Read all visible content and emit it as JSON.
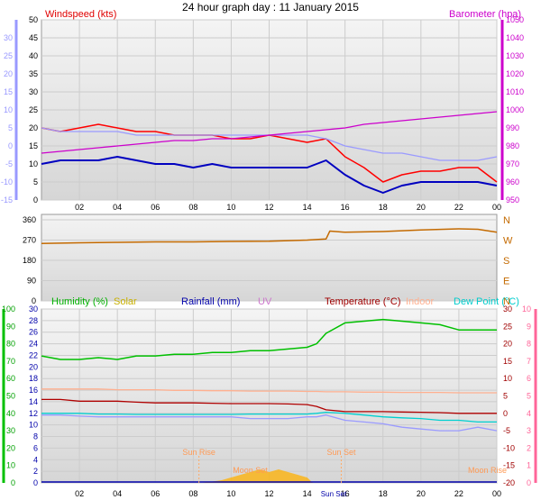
{
  "title": "24 hour graph day : 11 January 2015",
  "colors": {
    "windspeed": "#ff0000",
    "windavg": "#0000c0",
    "temp_feel": "#9a9aff",
    "barometer": "#cc00cc",
    "direction": "#c46a00",
    "humidity": "#00c000",
    "solar": "#ffb000",
    "rainfall": "#0000aa",
    "uv": "#cc77cc",
    "temperature": "#b00000",
    "indoor": "#ffb090",
    "dewpoint": "#00d0d0",
    "axis_left_top": "#9999ff",
    "axis_right_top": "#cc00cc",
    "axis_left_bottom": "#00c000",
    "axis_right_bottom": "#ff6699"
  },
  "chart_data": [
    {
      "type": "line",
      "panel": "wind-barometer",
      "labels": {
        "left": "Windspeed (kts)",
        "right": "Barometer (hpa)"
      },
      "x_ticks": [
        "02",
        "04",
        "06",
        "08",
        "10",
        "12",
        "14",
        "16",
        "18",
        "20",
        "22",
        "00"
      ],
      "y_ticks_wind": [
        "0",
        "5",
        "10",
        "15",
        "20",
        "25",
        "30",
        "35",
        "40",
        "45",
        "50"
      ],
      "y_ticks_temp_left": [
        "-15",
        "-10",
        "-5",
        "0",
        "5",
        "10",
        "15",
        "20",
        "25",
        "30"
      ],
      "y_ticks_baro": [
        "950",
        "960",
        "970",
        "980",
        "990",
        "1000",
        "1010",
        "1020",
        "1030",
        "1040",
        "1050"
      ],
      "ylim_wind": [
        0,
        50
      ],
      "ylim_baro": [
        950,
        1050
      ],
      "x_hours": [
        0,
        1,
        2,
        3,
        4,
        5,
        6,
        7,
        8,
        9,
        10,
        11,
        12,
        13,
        14,
        15,
        16,
        17,
        18,
        19,
        20,
        21,
        22,
        23,
        24
      ],
      "series": [
        {
          "key": "windspeed",
          "values": [
            20,
            19,
            20,
            21,
            20,
            19,
            19,
            18,
            18,
            18,
            17,
            17,
            18,
            17,
            16,
            17,
            12,
            9,
            5,
            7,
            8,
            8,
            9,
            9,
            5
          ]
        },
        {
          "key": "windavg",
          "values": [
            10,
            11,
            11,
            11,
            12,
            11,
            10,
            10,
            9,
            10,
            9,
            9,
            9,
            9,
            9,
            11,
            7,
            4,
            2,
            4,
            5,
            5,
            5,
            5,
            4
          ]
        },
        {
          "key": "temp_feel",
          "values": [
            5,
            4,
            4,
            4,
            4,
            3,
            3,
            3,
            3,
            3,
            3,
            3,
            3,
            3,
            3,
            2,
            0,
            -1,
            -2,
            -2,
            -3,
            -4,
            -4,
            -4,
            -3
          ]
        },
        {
          "key": "barometer",
          "values": [
            976,
            977,
            978,
            979,
            980,
            981,
            982,
            983,
            983,
            984,
            984,
            985,
            986,
            987,
            988,
            989,
            990,
            992,
            993,
            994,
            995,
            996,
            997,
            998,
            999
          ]
        }
      ]
    },
    {
      "type": "line",
      "panel": "wind-direction",
      "y_ticks": [
        "0",
        "90",
        "180",
        "270",
        "360"
      ],
      "dir_labels": [
        "N",
        "W",
        "S",
        "E",
        "N"
      ],
      "ylim": [
        0,
        360
      ],
      "x_hours": [
        0,
        2,
        4,
        6,
        8,
        10,
        12,
        14,
        15,
        15.2,
        16,
        18,
        20,
        22,
        23,
        24
      ],
      "series": [
        {
          "key": "direction",
          "values": [
            255,
            258,
            260,
            262,
            262,
            264,
            265,
            270,
            275,
            310,
            305,
            308,
            315,
            320,
            318,
            305
          ]
        }
      ]
    },
    {
      "type": "line",
      "panel": "humidity-temperature",
      "labels": {
        "humidity": "Humidity (%)",
        "solar": "Solar",
        "rainfall": "Rainfall (mm)",
        "uv": "UV",
        "temperature": "Temperature (°C)",
        "indoor": "Indoor",
        "dewpoint": "Dew Point (°C)"
      },
      "annotations": {
        "sunrise": "Sun Rise",
        "sunset": "Sun Set",
        "moonset": "Moon Set",
        "moonrise": "Moon Rise",
        "sun_label": "Sun Set"
      },
      "y_ticks_humidity": [
        "0",
        "10",
        "20",
        "30",
        "40",
        "50",
        "60",
        "70",
        "80",
        "90",
        "100"
      ],
      "y_ticks_rain": [
        "0",
        "2",
        "4",
        "6",
        "8",
        "10",
        "12",
        "14",
        "16",
        "18",
        "20",
        "22",
        "24",
        "26",
        "28",
        "30"
      ],
      "y_ticks_temp": [
        "-20",
        "-15",
        "-10",
        "-5",
        "0",
        "5",
        "10",
        "15",
        "20",
        "25",
        "30"
      ],
      "y_ticks_uv": [
        "0",
        "1",
        "2",
        "3",
        "4",
        "5",
        "6",
        "7",
        "8",
        "9",
        "10"
      ],
      "ylim_humidity": [
        0,
        100
      ],
      "ylim_temp": [
        -20,
        30
      ],
      "x_hours": [
        0,
        1,
        2,
        3,
        4,
        5,
        6,
        7,
        8,
        9,
        10,
        11,
        12,
        13,
        14,
        14.5,
        15,
        16,
        17,
        18,
        19,
        20,
        21,
        22,
        23,
        24
      ],
      "series": [
        {
          "key": "humidity",
          "values": [
            73,
            71,
            71,
            72,
            71,
            73,
            73,
            74,
            74,
            75,
            75,
            76,
            76,
            77,
            78,
            80,
            86,
            92,
            93,
            94,
            93,
            92,
            91,
            88,
            88,
            88
          ]
        },
        {
          "key": "temperature",
          "values": [
            4,
            4,
            3.5,
            3.5,
            3.5,
            3.2,
            3,
            3,
            3,
            2.9,
            2.8,
            2.8,
            2.8,
            2.7,
            2.5,
            2,
            1,
            0.5,
            0.5,
            0.5,
            0.4,
            0.3,
            0.2,
            0,
            0,
            0
          ]
        },
        {
          "key": "dewpoint",
          "values": [
            0,
            0,
            0,
            -0.2,
            -0.2,
            -0.3,
            -0.3,
            -0.3,
            -0.3,
            -0.3,
            -0.3,
            -0.2,
            -0.2,
            -0.2,
            -0.2,
            0,
            0.3,
            0,
            -0.5,
            -1,
            -1.3,
            -1.5,
            -2,
            -2,
            -2.5,
            -2.5
          ]
        },
        {
          "key": "indoor",
          "values": [
            7,
            7,
            7,
            7,
            6.8,
            6.8,
            6.8,
            6.6,
            6.6,
            6.5,
            6.5,
            6.4,
            6.4,
            6.4,
            6.3,
            6.3,
            6.2,
            6.2,
            6.1,
            6.1,
            6,
            6,
            6,
            5.9,
            5.9,
            5.9
          ]
        },
        {
          "key": "temp_feel",
          "values": [
            -0.5,
            -0.5,
            -0.8,
            -1,
            -1,
            -1,
            -1,
            -1,
            -1,
            -1,
            -1,
            -1.5,
            -1.5,
            -1.5,
            -1,
            -1,
            -0.5,
            -2,
            -2.5,
            -3,
            -4,
            -4.5,
            -5,
            -5,
            -4,
            -5
          ]
        },
        {
          "key": "rainfall",
          "values": [
            0,
            0,
            0,
            0,
            0,
            0,
            0,
            0,
            0,
            0,
            0,
            0,
            0,
            0,
            0,
            0,
            0,
            0,
            0,
            0,
            0,
            0,
            0,
            0,
            0,
            0
          ]
        }
      ],
      "solar": {
        "x_hours": [
          8.5,
          9,
          9.5,
          10,
          10.5,
          11,
          11.5,
          12,
          12.5,
          13,
          13.5,
          14,
          14.3
        ],
        "values": [
          0,
          0.5,
          1,
          2,
          3,
          4,
          5,
          4,
          5,
          4,
          3,
          2,
          0
        ]
      }
    }
  ]
}
